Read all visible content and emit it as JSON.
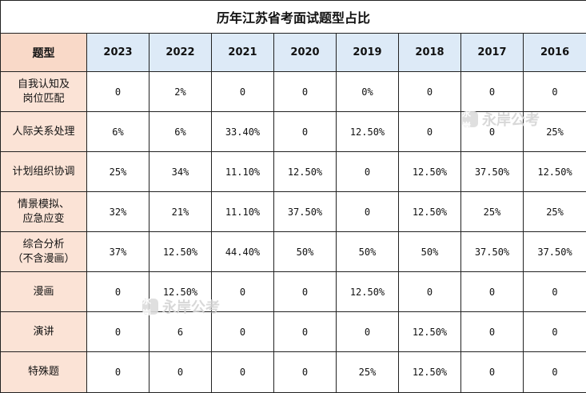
{
  "title": "历年江苏省考面试题型占比",
  "header": {
    "first": "题型",
    "years": [
      "2023",
      "2022",
      "2021",
      "2020",
      "2019",
      "2018",
      "2017",
      "2016"
    ]
  },
  "rows": [
    {
      "label_lines": [
        "自我认知及",
        "岗位匹配"
      ],
      "values": [
        "0",
        "2%",
        "0",
        "0",
        "0%",
        "0",
        "0",
        "0"
      ]
    },
    {
      "label_lines": [
        "人际关系处理"
      ],
      "values": [
        "6%",
        "6%",
        "33.40%",
        "0",
        "12.50%",
        "0",
        "0",
        "25%"
      ]
    },
    {
      "label_lines": [
        "计划组织协调"
      ],
      "values": [
        "25%",
        "34%",
        "11.10%",
        "12.50%",
        "0",
        "12.50%",
        "37.50%",
        "12.50%"
      ]
    },
    {
      "label_lines": [
        "情景模拟、",
        "应急应变"
      ],
      "values": [
        "32%",
        "21%",
        "11.10%",
        "37.50%",
        "0",
        "12.50%",
        "25%",
        "25%"
      ]
    },
    {
      "label_lines": [
        "综合分析",
        "（不含漫画）"
      ],
      "values": [
        "37%",
        "12.50%",
        "44.40%",
        "50%",
        "50%",
        "50%",
        "37.50%",
        "37.50%"
      ]
    },
    {
      "label_lines": [
        "漫画"
      ],
      "values": [
        "0",
        "12.50%",
        "0",
        "0",
        "12.50%",
        "0",
        "0",
        "0"
      ]
    },
    {
      "label_lines": [
        "演讲"
      ],
      "values": [
        "0",
        "6",
        "0",
        "0",
        "0",
        "12.50%",
        "0",
        "0"
      ]
    },
    {
      "label_lines": [
        "特殊题"
      ],
      "values": [
        "0",
        "0",
        "0",
        "0",
        "25%",
        "12.50%",
        "0",
        "0"
      ]
    }
  ],
  "watermark": {
    "badge": "永岸",
    "text": "永岸公考"
  },
  "colors": {
    "title_bg": "#ffffff",
    "header_first_bg": "#f9d9c8",
    "header_year_bg": "#ddeaf7",
    "row_label_bg": "#fbe3d6",
    "border": "#222222"
  }
}
